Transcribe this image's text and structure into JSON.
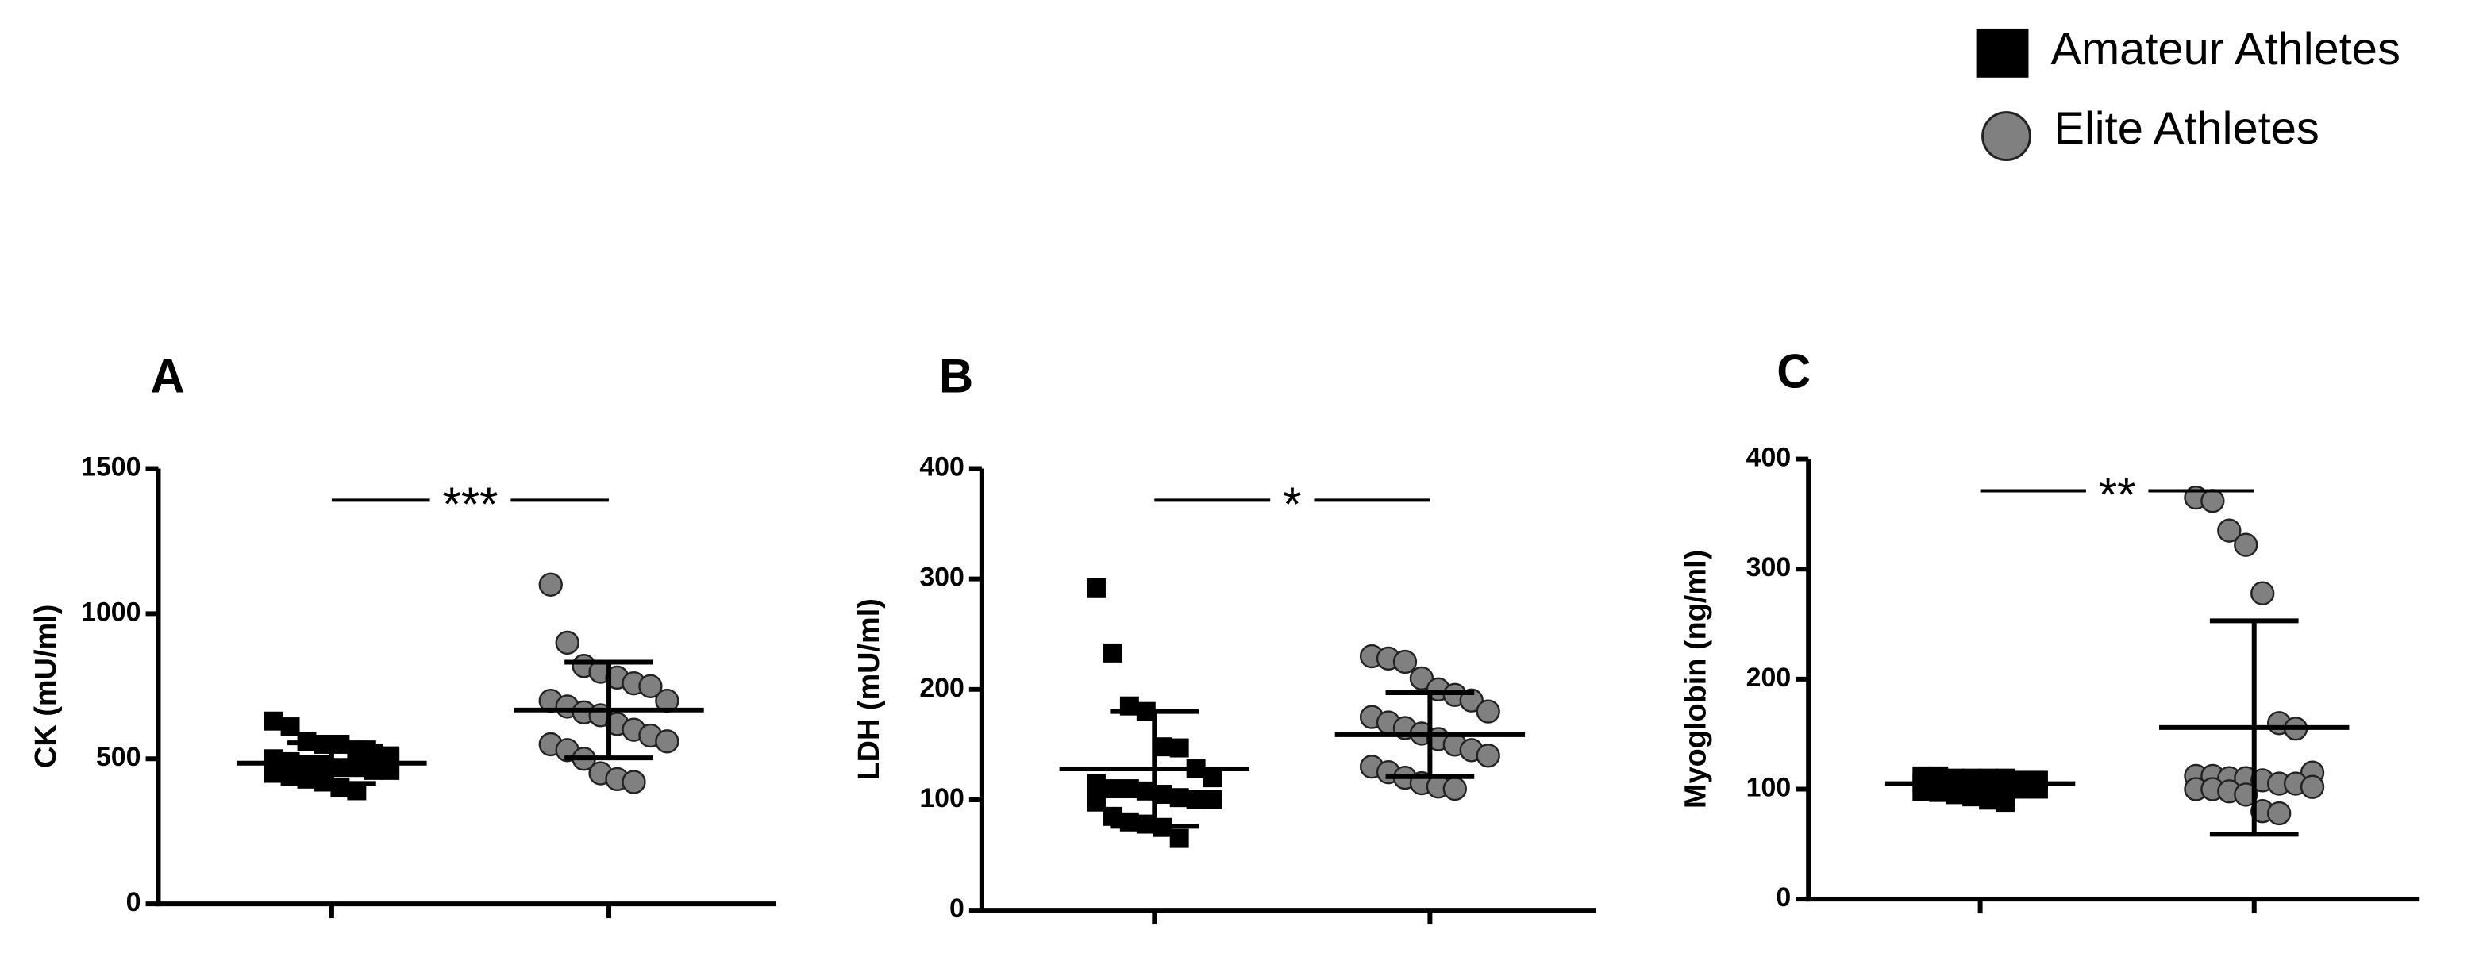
{
  "legend": {
    "entries": [
      "Amateur Athletes",
      "Elite Athletes"
    ]
  },
  "chart_data": [
    {
      "type": "scatter",
      "panel_label": "A",
      "ylabel": "CK (mU/ml)",
      "annotation": "***",
      "categories": [
        null,
        null
      ],
      "ylim": [
        0,
        1500
      ],
      "yticks": [
        0,
        500,
        1000,
        1500
      ],
      "series": [
        {
          "marker": "square",
          "color": "#000000",
          "mean": 485,
          "sd": 70,
          "values": [
            630,
            610,
            560,
            550,
            550,
            530,
            520,
            510,
            500,
            490,
            480,
            480,
            470,
            470,
            460,
            460,
            450,
            440,
            430,
            420,
            400,
            390
          ]
        },
        {
          "marker": "circle",
          "color": "#808080",
          "mean": 668,
          "sd": 165,
          "values": [
            1100,
            900,
            820,
            800,
            780,
            760,
            750,
            700,
            700,
            680,
            660,
            650,
            620,
            600,
            580,
            560,
            550,
            530,
            500,
            450,
            430,
            420
          ]
        }
      ]
    },
    {
      "type": "scatter",
      "panel_label": "B",
      "ylabel": "LDH (mU/ml)",
      "annotation": "*",
      "categories": [
        null,
        null
      ],
      "ylim": [
        0,
        400
      ],
      "yticks": [
        0,
        100,
        200,
        300,
        400
      ],
      "series": [
        {
          "marker": "square",
          "color": "#000000",
          "mean": 128,
          "sd": 52,
          "values": [
            292,
            233,
            185,
            180,
            148,
            147,
            128,
            120,
            115,
            110,
            110,
            108,
            105,
            102,
            100,
            100,
            98,
            85,
            80,
            78,
            75,
            65
          ]
        },
        {
          "marker": "circle",
          "color": "#808080",
          "mean": 159,
          "sd": 38,
          "values": [
            230,
            228,
            225,
            210,
            200,
            195,
            190,
            180,
            175,
            170,
            165,
            160,
            155,
            150,
            145,
            140,
            130,
            125,
            120,
            115,
            112,
            110
          ]
        }
      ]
    },
    {
      "type": "scatter",
      "panel_label": "C",
      "ylabel": "Myoglobin (ng/ml)",
      "annotation": "**",
      "categories": [
        null,
        null
      ],
      "ylim": [
        0,
        400
      ],
      "yticks": [
        0,
        100,
        200,
        300,
        400
      ],
      "series": [
        {
          "marker": "square",
          "color": "#000000",
          "mean": 105,
          "sd": 8,
          "values": [
            112,
            112,
            110,
            110,
            110,
            110,
            108,
            108,
            106,
            105,
            105,
            104,
            103,
            102,
            100,
            100,
            98,
            97,
            95,
            93,
            90,
            88
          ]
        },
        {
          "marker": "circle",
          "color": "#808080",
          "mean": 156,
          "sd": 97,
          "values": [
            365,
            362,
            335,
            322,
            278,
            160,
            155,
            115,
            112,
            112,
            110,
            110,
            108,
            105,
            105,
            102,
            100,
            100,
            98,
            95,
            80,
            78
          ]
        }
      ]
    }
  ]
}
